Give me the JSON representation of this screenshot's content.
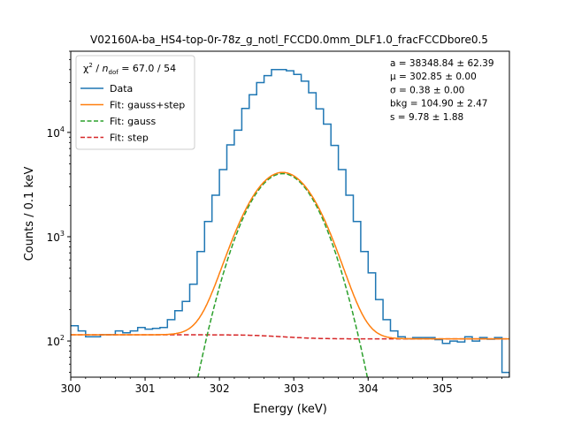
{
  "chart_data": {
    "type": "line",
    "title": "V02160A-ba_HS4-top-0r-78z_g_notl_FCCD0.0mm_DLF1.0_fracFCCDbore0.5",
    "xlabel": "Energy (keV)",
    "ylabel": "Counts / 0.1 keV",
    "xlim": [
      300,
      305.9
    ],
    "ylim": [
      45,
      60000
    ],
    "yscale": "log",
    "x_ticks": [
      "300",
      "301",
      "302",
      "303",
      "304",
      "305"
    ],
    "y_ticks": [
      {
        "value": 100,
        "base": "10",
        "exp": "2"
      },
      {
        "value": 1000,
        "base": "10",
        "exp": "3"
      },
      {
        "value": 10000,
        "base": "10",
        "exp": "4"
      }
    ],
    "legend": {
      "location": "upper-left",
      "chi2": {
        "chi": "χ",
        "sq": "2",
        "slash": " / ",
        "n": "n",
        "sub": "dof",
        "value": " = 67.0 / 54"
      },
      "entries": [
        "Data",
        "Fit: gauss+step",
        "Fit: gauss",
        "Fit: step"
      ]
    },
    "fit_params": [
      "a = 38348.84 ± 62.39",
      "μ = 302.85 ± 0.00",
      "σ = 0.38 ± 0.00",
      "bkg = 104.90 ± 2.47",
      "s = 9.78 ± 1.88"
    ],
    "model": {
      "a": 38348.84,
      "mu": 302.85,
      "sigma": 0.38,
      "bkg": 104.9,
      "s": 9.78,
      "bin_width": 0.1
    },
    "series": [
      {
        "name": "Data",
        "style": "step",
        "color": "#1f77b4",
        "bin_width": 0.1,
        "x": [
          300.0,
          300.1,
          300.2,
          300.3,
          300.4,
          300.5,
          300.6,
          300.7,
          300.8,
          300.9,
          301.0,
          301.1,
          301.2,
          301.3,
          301.4,
          301.5,
          301.6,
          301.7,
          301.8,
          301.9,
          302.0,
          302.1,
          302.2,
          302.3,
          302.4,
          302.5,
          302.6,
          302.7,
          302.8,
          302.9,
          303.0,
          303.1,
          303.2,
          303.3,
          303.4,
          303.5,
          303.6,
          303.7,
          303.8,
          303.9,
          304.0,
          304.1,
          304.2,
          304.3,
          304.4,
          304.5,
          304.6,
          304.7,
          304.8,
          304.9,
          305.0,
          305.1,
          305.2,
          305.3,
          305.4,
          305.5,
          305.6,
          305.7,
          305.8
        ],
        "y": [
          140,
          125,
          110,
          110,
          115,
          115,
          125,
          120,
          125,
          135,
          130,
          132,
          135,
          160,
          195,
          240,
          350,
          720,
          1400,
          2500,
          4400,
          7600,
          10500,
          17000,
          23000,
          30000,
          35000,
          40000,
          40000,
          39000,
          36000,
          31000,
          24000,
          16800,
          12000,
          7500,
          4400,
          2500,
          1400,
          720,
          450,
          250,
          160,
          125,
          110,
          105,
          108,
          108,
          108,
          103,
          95,
          100,
          98,
          110,
          100,
          108,
          104,
          108,
          50
        ]
      },
      {
        "name": "Fit: gauss+step",
        "style": "line",
        "color": "#ff7f0e"
      },
      {
        "name": "Fit: gauss",
        "style": "dashed",
        "color": "#2ca02c"
      },
      {
        "name": "Fit: step",
        "style": "dashed",
        "color": "#d62728"
      }
    ]
  }
}
